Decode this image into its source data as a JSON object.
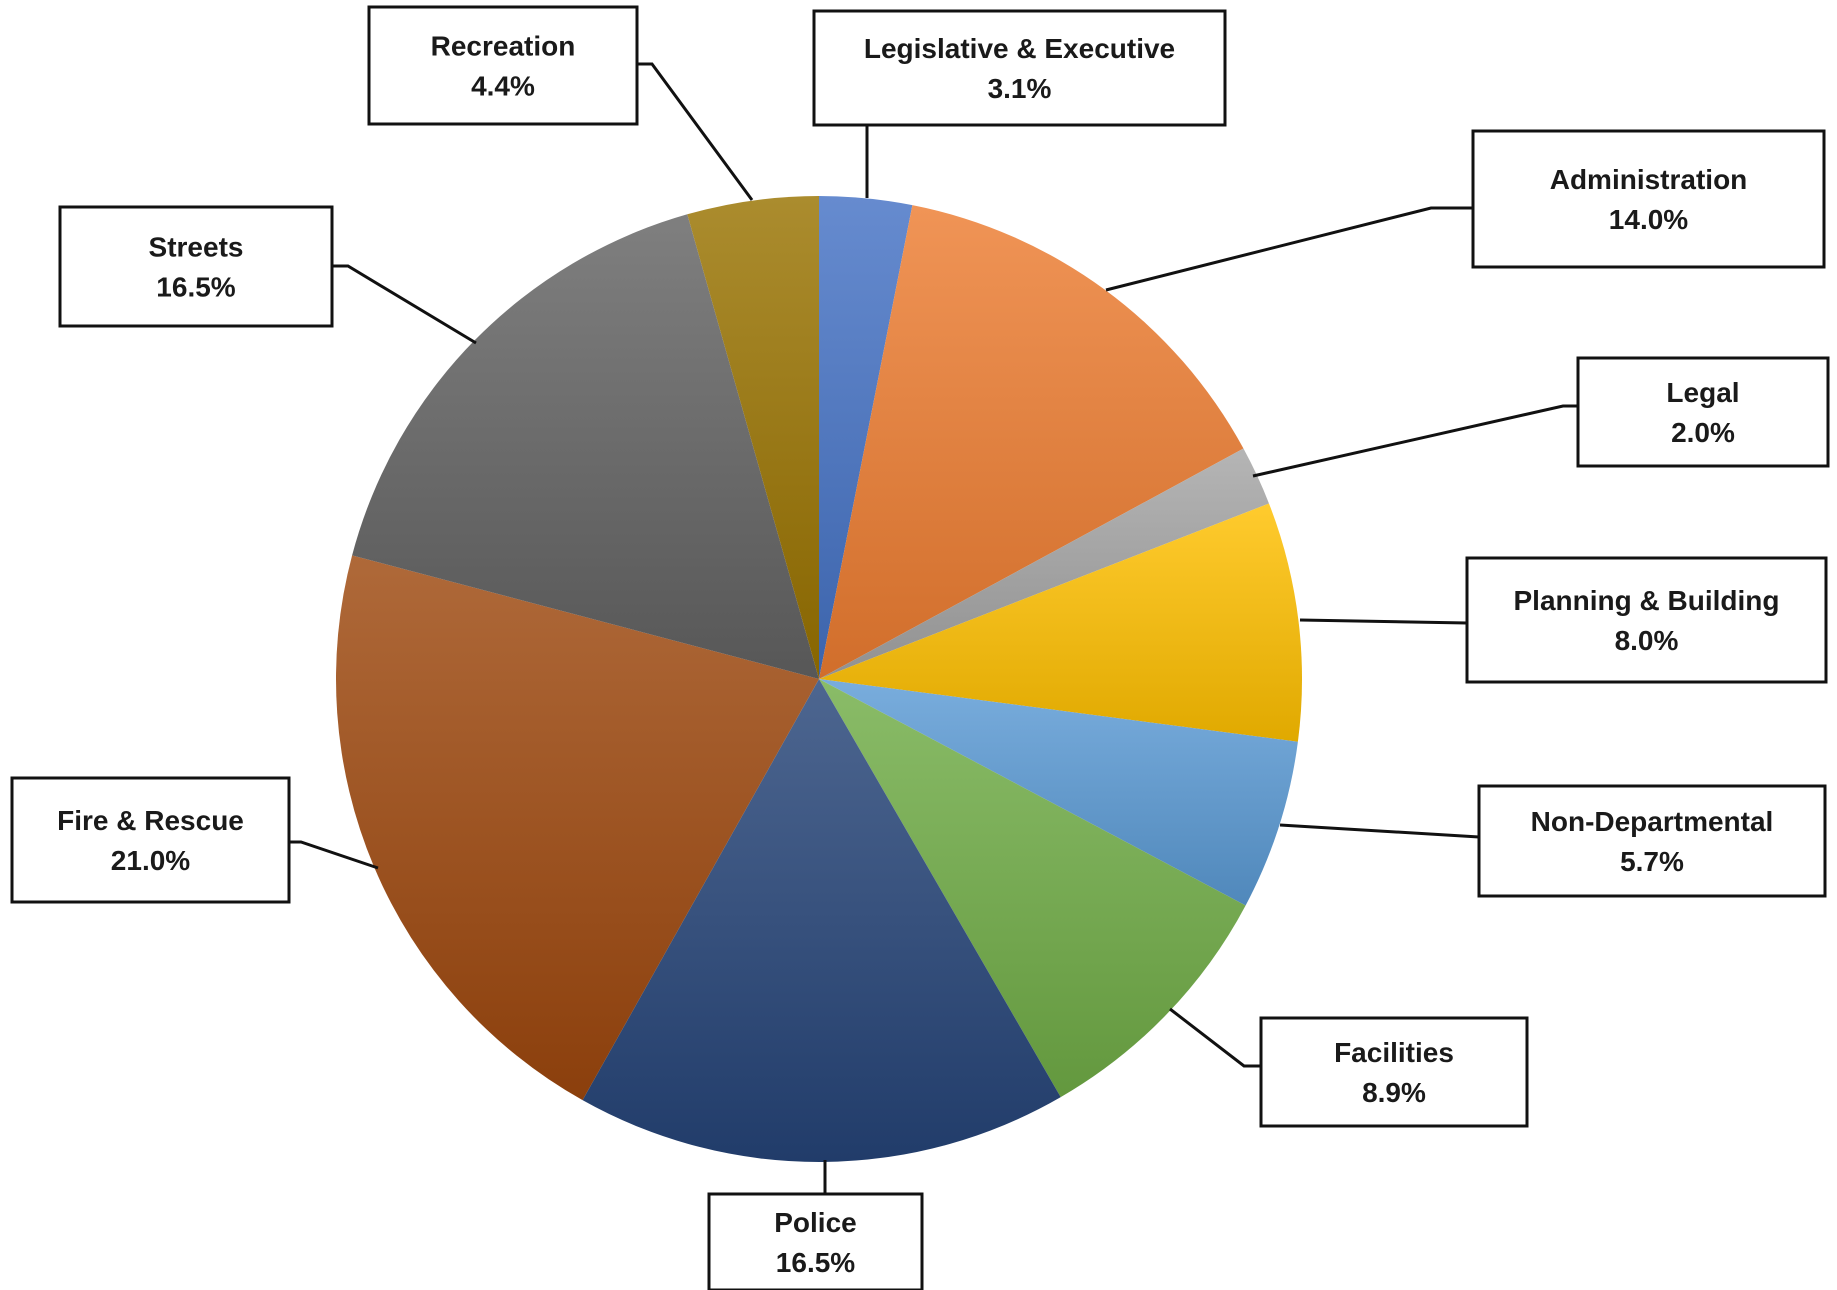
{
  "chart_data": {
    "type": "pie",
    "title": "",
    "start_angle_deg": 0,
    "direction": "clockwise",
    "slices": [
      {
        "label": "Legislative & Executive",
        "value": 3.1,
        "display": "3.1%",
        "color": "#4472C4"
      },
      {
        "label": "Administration",
        "value": 14.0,
        "display": "14.0%",
        "color": "#ED7D31"
      },
      {
        "label": "Legal",
        "value": 2.0,
        "display": "2.0%",
        "color": "#A5A5A5"
      },
      {
        "label": "Planning & Building",
        "value": 8.0,
        "display": "8.0%",
        "color": "#FFC000"
      },
      {
        "label": "Non-Departmental",
        "value": 5.7,
        "display": "5.7%",
        "color": "#5B9BD5"
      },
      {
        "label": "Facilities",
        "value": 8.9,
        "display": "8.9%",
        "color": "#70AD47"
      },
      {
        "label": "Police",
        "value": 16.5,
        "display": "16.5%",
        "color": "#264478"
      },
      {
        "label": "Fire & Rescue",
        "value": 21.0,
        "display": "21.0%",
        "color": "#9E480E"
      },
      {
        "label": "Streets",
        "value": 16.5,
        "display": "16.5%",
        "color": "#636363"
      },
      {
        "label": "Recreation",
        "value": 4.4,
        "display": "4.4%",
        "color": "#997300"
      }
    ]
  }
}
